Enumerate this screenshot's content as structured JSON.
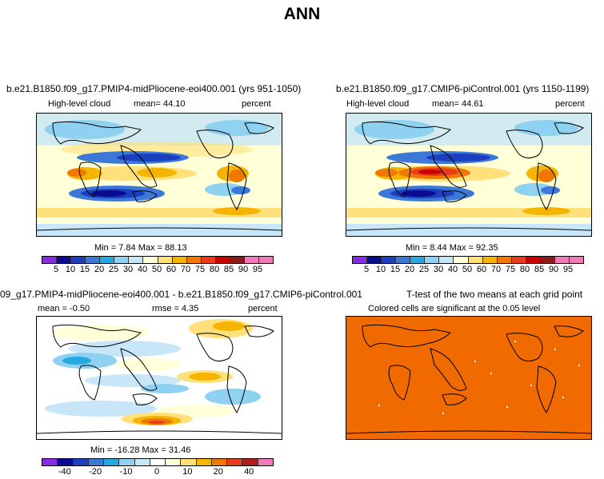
{
  "title": "ANN",
  "chart_data": [
    {
      "type": "heatmap",
      "panel": "top-left",
      "title": "b.e21.B1850.f09_g17.PMIP4-midPliocene-eoi400.001 (yrs 951-1050)",
      "variable": "High-level cloud",
      "mean_text": "mean=   44.10",
      "units": "percent",
      "minmax_text": "Min =    7.84  Max =   88.13",
      "min": 7.84,
      "max": 88.13,
      "mean": 44.1,
      "colorbar_labels": [
        "5",
        "10",
        "15",
        "20",
        "25",
        "30",
        "40",
        "50",
        "60",
        "70",
        "75",
        "80",
        "85",
        "90",
        "95"
      ]
    },
    {
      "type": "heatmap",
      "panel": "top-right",
      "title": "b.e21.B1850.f09_g17.CMIP6-piControl.001 (yrs 1150-1199)",
      "variable": "High-level cloud",
      "mean_text": "mean=   44.61",
      "units": "percent",
      "minmax_text": "Min =    8.44  Max =   92.35",
      "min": 8.44,
      "max": 92.35,
      "mean": 44.61,
      "colorbar_labels": [
        "5",
        "10",
        "15",
        "20",
        "25",
        "30",
        "40",
        "50",
        "60",
        "70",
        "75",
        "80",
        "85",
        "90",
        "95"
      ]
    },
    {
      "type": "heatmap",
      "panel": "bottom-left",
      "title": "09_g17.PMIP4-midPliocene-eoi400.001 - b.e21.B1850.f09_g17.CMIP6-piControl.001",
      "mean_text": "mean =   -0.50",
      "rmse_text": "rmse =    4.35",
      "units": "percent",
      "minmax_text": "Min = -16.28  Max =   31.46",
      "min": -16.28,
      "max": 31.46,
      "mean": -0.5,
      "rmse": 4.35,
      "colorbar_labels": [
        "-40",
        "-20",
        "-10",
        "0",
        "10",
        "20",
        "40"
      ]
    },
    {
      "type": "heatmap",
      "panel": "bottom-right",
      "title": "T-test of the two means at each grid point",
      "subtitle": "Colored cells are significant at the 0.05 level",
      "significance_color": "#f06a00"
    }
  ],
  "colors": {
    "abs_scale": [
      "#8a2be2",
      "#0b0b8f",
      "#1b3fbf",
      "#3c78d8",
      "#26a9e0",
      "#8fd1f0",
      "#c7e6f7",
      "#ffffd8",
      "#ffe07a",
      "#f5b400",
      "#f07800",
      "#e83c1a",
      "#c80000",
      "#8b1a1a",
      "#f07ab8"
    ],
    "diff_scale": [
      "#8a2be2",
      "#0b0b8f",
      "#1b3fbf",
      "#3c78d8",
      "#26a9e0",
      "#8fd1f0",
      "#c7e6f7",
      "#ffffff",
      "#ffffd8",
      "#ffe07a",
      "#f5b400",
      "#f07800",
      "#e83c1a",
      "#b01e1e",
      "#f07ab8"
    ],
    "ttest": "#f06a00"
  }
}
